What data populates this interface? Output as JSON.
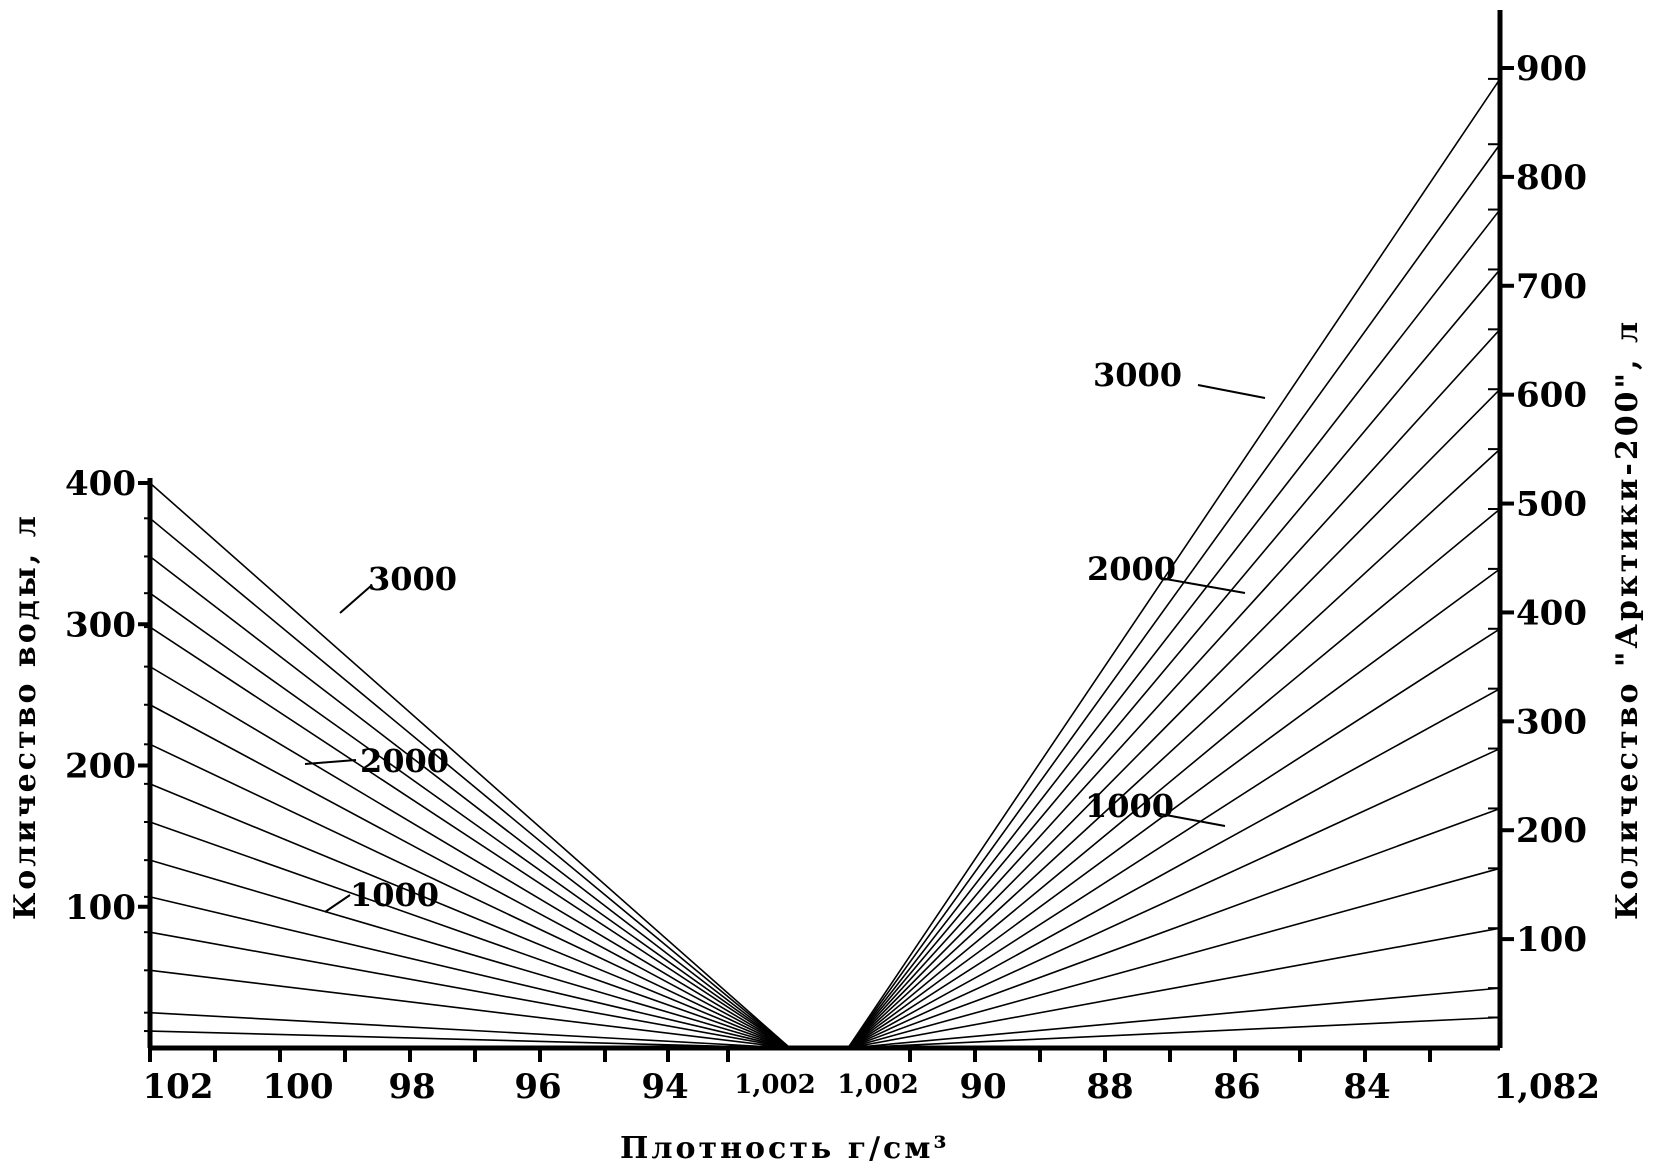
{
  "chart_data": {
    "type": "line",
    "xlabel": "Плотность г/см³",
    "left_panel": {
      "ylabel": "Количество воды, л",
      "x_ticks": [
        "102",
        "100",
        "98",
        "96",
        "94",
        "1,002"
      ],
      "y_ticks": [
        "100",
        "200",
        "300",
        "400"
      ],
      "ylim": [
        0,
        400
      ],
      "line_end_values": [
        12,
        25,
        55,
        82,
        107,
        133,
        160,
        187,
        215,
        243,
        270,
        298,
        322,
        348,
        375,
        400
      ],
      "annotations": [
        "3000",
        "2000",
        "1000"
      ]
    },
    "right_panel": {
      "ylabel": "Количество \"Арктики-200\", л",
      "x_ticks": [
        "1,002",
        "90",
        "88",
        "86",
        "84",
        "1,082"
      ],
      "y_ticks": [
        "100",
        "200",
        "300",
        "400",
        "500",
        "600",
        "700",
        "800",
        "900"
      ],
      "ylim": [
        0,
        900
      ],
      "line_end_values": [
        28,
        55,
        110,
        165,
        220,
        275,
        330,
        385,
        440,
        495,
        550,
        605,
        660,
        715,
        770,
        830,
        890
      ],
      "annotations": [
        "3000",
        "2000",
        "1000"
      ]
    }
  }
}
